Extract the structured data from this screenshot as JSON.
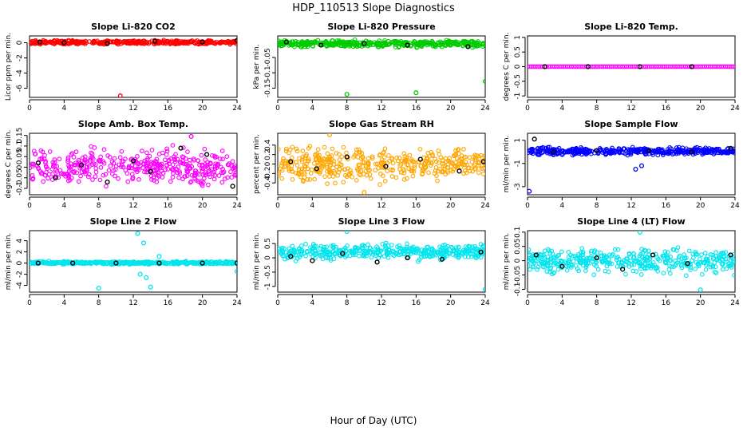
{
  "figure": {
    "title": "HDP_110513  Slope Diagnostics",
    "xlabel": "Hour of Day (UTC)"
  },
  "colors": {
    "outline": "#000000",
    "background": "#ffffff"
  },
  "chart_data": [
    {
      "type": "scatter",
      "title": "Slope Li-820 CO2",
      "ylabel": "Licor ppm per min.",
      "color": "#ff0000",
      "xlim": [
        0,
        24
      ],
      "ylim": [
        -7.2,
        0.9
      ],
      "x_ticks": [
        0,
        4,
        8,
        12,
        16,
        20,
        24
      ],
      "y_ticks": [
        -6,
        -4,
        -2,
        0
      ],
      "band": [
        -0.3,
        0.4
      ],
      "outliers": [
        {
          "x": 10.5,
          "y": -7.0
        }
      ],
      "cal_points": [
        {
          "x": 1.2,
          "y": 0.1
        },
        {
          "x": 4.0,
          "y": 0.0
        },
        {
          "x": 9.0,
          "y": -0.1
        },
        {
          "x": 14.5,
          "y": 0.2
        },
        {
          "x": 20.0,
          "y": 0.1
        },
        {
          "x": 24.0,
          "y": 0.3
        }
      ]
    },
    {
      "type": "scatter",
      "title": "Slope Li-820 Pressure",
      "ylabel": "kPa per min.",
      "color": "#00cc00",
      "xlim": [
        0,
        24
      ],
      "ylim": [
        -0.18,
        0.02
      ],
      "x_ticks": [
        0,
        4,
        8,
        12,
        16,
        20,
        24
      ],
      "y_ticks": [
        -0.15,
        -0.1,
        -0.05
      ],
      "band": [
        -0.02,
        0.01
      ],
      "outliers": [
        {
          "x": 8.0,
          "y": -0.17
        },
        {
          "x": 16.0,
          "y": -0.165
        },
        {
          "x": 24.0,
          "y": -0.128
        }
      ],
      "cal_points": [
        {
          "x": 1.0,
          "y": 0.0
        },
        {
          "x": 5.0,
          "y": -0.01
        },
        {
          "x": 10.0,
          "y": -0.005
        },
        {
          "x": 15.0,
          "y": -0.01
        },
        {
          "x": 22.0,
          "y": -0.015
        }
      ]
    },
    {
      "type": "scatter",
      "title": "Slope Li-820 Temp.",
      "ylabel": "degrees C per min.",
      "color": "#ff00ff",
      "xlim": [
        0,
        24
      ],
      "ylim": [
        -1.05,
        1.05
      ],
      "x_ticks": [
        0,
        4,
        8,
        12,
        16,
        20,
        24
      ],
      "y_ticks": [
        -1.0,
        -0.5,
        0.0,
        0.5,
        1.0
      ],
      "band": [
        0.0,
        0.0
      ],
      "outliers": [],
      "cal_points": [
        {
          "x": 2.0,
          "y": 0.0
        },
        {
          "x": 7.0,
          "y": 0.0
        },
        {
          "x": 13.0,
          "y": 0.0
        },
        {
          "x": 19.0,
          "y": 0.0
        }
      ]
    },
    {
      "type": "scatter",
      "title": "Slope Amb. Box Temp.",
      "ylabel": "degrees C per min.",
      "color": "#ff00ff",
      "xlim": [
        0,
        24
      ],
      "ylim": [
        -0.13,
        0.16
      ],
      "x_ticks": [
        0,
        4,
        8,
        12,
        16,
        20,
        24
      ],
      "y_ticks": [
        -0.1,
        -0.05,
        0.0,
        0.05,
        0.1,
        0.15
      ],
      "band": [
        -0.11,
        0.11
      ],
      "outliers": [
        {
          "x": 18.7,
          "y": 0.145
        }
      ],
      "cal_points": [
        {
          "x": 1.0,
          "y": 0.02
        },
        {
          "x": 3.0,
          "y": -0.05
        },
        {
          "x": 6.0,
          "y": 0.01
        },
        {
          "x": 9.0,
          "y": -0.07
        },
        {
          "x": 12.0,
          "y": 0.03
        },
        {
          "x": 14.0,
          "y": -0.02
        },
        {
          "x": 17.5,
          "y": 0.09
        },
        {
          "x": 20.5,
          "y": 0.06
        },
        {
          "x": 23.5,
          "y": -0.09
        }
      ]
    },
    {
      "type": "scatter",
      "title": "Slope Gas Stream RH",
      "ylabel": "percent per min.",
      "color": "#ffa500",
      "xlim": [
        0,
        24
      ],
      "ylim": [
        -0.65,
        0.65
      ],
      "x_ticks": [
        0,
        4,
        8,
        12,
        16,
        20,
        24
      ],
      "y_ticks": [
        -0.4,
        -0.2,
        0.0,
        0.2,
        0.4
      ],
      "band": [
        -0.5,
        0.5
      ],
      "outliers": [
        {
          "x": 6.0,
          "y": 0.62
        },
        {
          "x": 10.0,
          "y": -0.6
        }
      ],
      "cal_points": [
        {
          "x": 1.5,
          "y": 0.05
        },
        {
          "x": 4.5,
          "y": -0.1
        },
        {
          "x": 8.0,
          "y": 0.15
        },
        {
          "x": 12.5,
          "y": -0.05
        },
        {
          "x": 16.5,
          "y": 0.1
        },
        {
          "x": 21.0,
          "y": -0.15
        },
        {
          "x": 23.8,
          "y": 0.05
        }
      ]
    },
    {
      "type": "scatter",
      "title": "Slope Sample Flow",
      "ylabel": "ml/min per min.",
      "color": "#0000ff",
      "xlim": [
        0,
        24
      ],
      "ylim": [
        -3.7,
        1.6
      ],
      "x_ticks": [
        0,
        4,
        8,
        12,
        16,
        20,
        24
      ],
      "y_ticks": [
        -3,
        -1,
        1
      ],
      "band": [
        -0.4,
        0.5
      ],
      "outliers": [
        {
          "x": 0.2,
          "y": -3.4
        },
        {
          "x": 12.5,
          "y": -1.5
        },
        {
          "x": 13.2,
          "y": -1.2
        }
      ],
      "cal_points": [
        {
          "x": 0.8,
          "y": 1.1
        },
        {
          "x": 3.0,
          "y": 0.0
        },
        {
          "x": 8.0,
          "y": 0.1
        },
        {
          "x": 14.0,
          "y": 0.1
        },
        {
          "x": 19.0,
          "y": 0.0
        },
        {
          "x": 23.5,
          "y": 0.3
        }
      ]
    },
    {
      "type": "scatter",
      "title": "Slope Line 2 Flow",
      "ylabel": "ml/min per min.",
      "color": "#00e5ee",
      "xlim": [
        0,
        24
      ],
      "ylim": [
        -5.2,
        5.8
      ],
      "x_ticks": [
        0,
        4,
        8,
        12,
        16,
        20,
        24
      ],
      "y_ticks": [
        -4,
        -2,
        0,
        2,
        4
      ],
      "band": [
        -0.3,
        0.4
      ],
      "outliers": [
        {
          "x": 8.0,
          "y": -4.5
        },
        {
          "x": 12.5,
          "y": 5.3
        },
        {
          "x": 13.2,
          "y": 3.6
        },
        {
          "x": 12.8,
          "y": -2.0
        },
        {
          "x": 14.0,
          "y": -4.3
        },
        {
          "x": 13.5,
          "y": -2.6
        },
        {
          "x": 15.0,
          "y": 1.2
        },
        {
          "x": 24.0,
          "y": -1.5
        }
      ],
      "cal_points": [
        {
          "x": 1.0,
          "y": 0.0
        },
        {
          "x": 5.0,
          "y": 0.0
        },
        {
          "x": 10.0,
          "y": 0.0
        },
        {
          "x": 15.0,
          "y": 0.0
        },
        {
          "x": 20.0,
          "y": 0.0
        },
        {
          "x": 24.0,
          "y": 0.0
        }
      ]
    },
    {
      "type": "scatter",
      "title": "Slope Line 3 Flow",
      "ylabel": "ml/min per min.",
      "color": "#00e5ee",
      "xlim": [
        0,
        24
      ],
      "ylim": [
        -1.2,
        0.95
      ],
      "x_ticks": [
        0,
        4,
        8,
        12,
        16,
        20,
        24
      ],
      "y_ticks": [
        -1.0,
        -0.5,
        0.0,
        0.5
      ],
      "band": [
        -0.15,
        0.55
      ],
      "outliers": [
        {
          "x": 8.0,
          "y": 0.92
        },
        {
          "x": 24.0,
          "y": -1.1
        }
      ],
      "cal_points": [
        {
          "x": 1.5,
          "y": 0.05
        },
        {
          "x": 4.0,
          "y": -0.1
        },
        {
          "x": 7.5,
          "y": 0.15
        },
        {
          "x": 11.5,
          "y": -0.15
        },
        {
          "x": 15.0,
          "y": 0.0
        },
        {
          "x": 19.0,
          "y": -0.05
        },
        {
          "x": 23.5,
          "y": 0.2
        }
      ]
    },
    {
      "type": "scatter",
      "title": "Slope Line 4 (LT) Flow",
      "ylabel": "ml/min per min.",
      "color": "#00e5ee",
      "xlim": [
        0,
        24
      ],
      "ylim": [
        -0.11,
        0.105
      ],
      "x_ticks": [
        0,
        4,
        8,
        12,
        16,
        20,
        24
      ],
      "y_ticks": [
        -0.1,
        -0.05,
        0.0,
        0.05,
        0.1
      ],
      "band": [
        -0.06,
        0.06
      ],
      "outliers": [
        {
          "x": 13.0,
          "y": 0.1
        },
        {
          "x": 20.0,
          "y": -0.102
        }
      ],
      "cal_points": [
        {
          "x": 1.0,
          "y": 0.02
        },
        {
          "x": 4.0,
          "y": -0.02
        },
        {
          "x": 8.0,
          "y": 0.01
        },
        {
          "x": 11.0,
          "y": -0.03
        },
        {
          "x": 14.5,
          "y": 0.02
        },
        {
          "x": 18.5,
          "y": -0.01
        },
        {
          "x": 23.5,
          "y": 0.02
        }
      ]
    }
  ]
}
